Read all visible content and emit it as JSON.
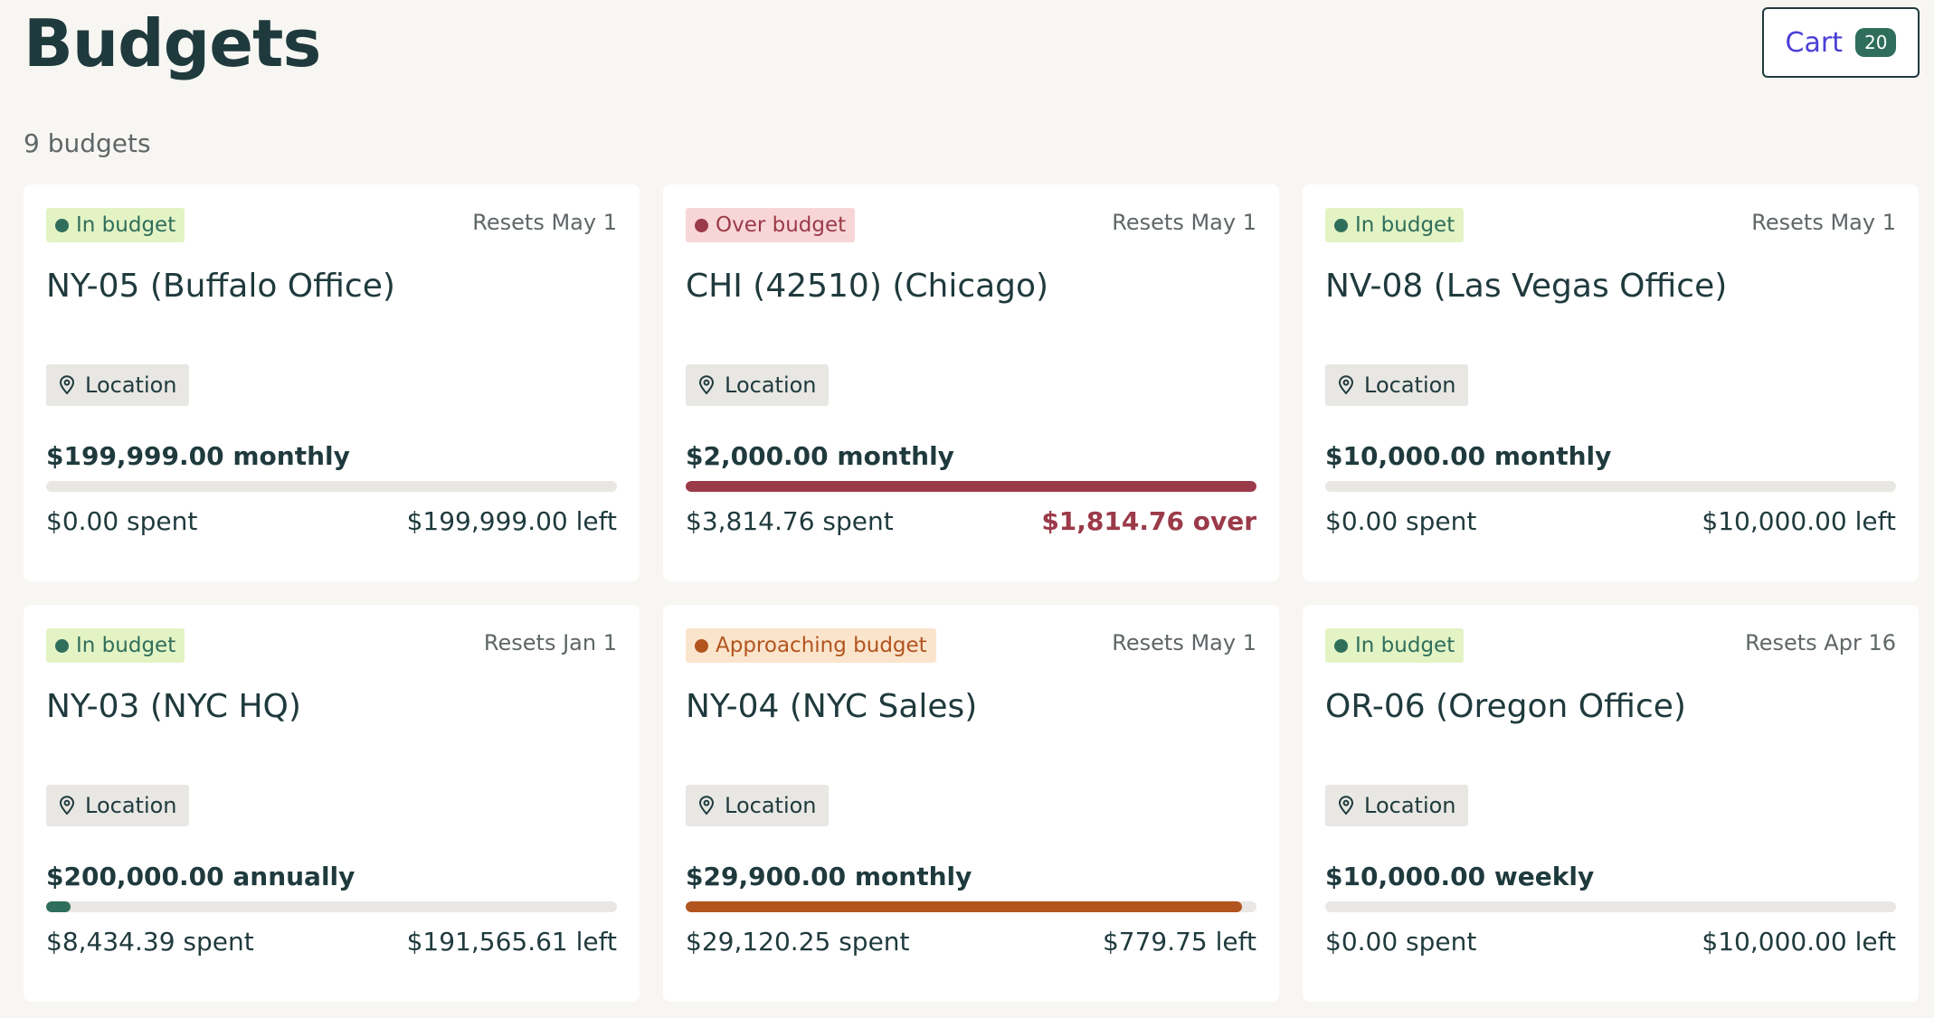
{
  "header": {
    "title": "Budgets",
    "cart_label": "Cart",
    "cart_count": "20"
  },
  "summary": {
    "count_text": "9 budgets"
  },
  "colors": {
    "in_budget": "#2f6e5b",
    "over_budget": "#9b3a49",
    "approaching_budget": "#b1541e",
    "cart_accent": "#4a3fd6"
  },
  "budgets": [
    {
      "status": "In budget",
      "status_type": "in",
      "reset": "Resets May 1",
      "name": "NY-05 (Buffalo Office)",
      "tag": "Location",
      "tag_icon": "location-pin-icon",
      "amount": "$199,999.00 monthly",
      "spent": "$0.00 spent",
      "remaining": "$199,999.00 left",
      "progress": 0
    },
    {
      "status": "Over budget",
      "status_type": "over",
      "reset": "Resets May 1",
      "name": "CHI (42510) (Chicago)",
      "tag": "Location",
      "tag_icon": "location-pin-icon",
      "amount": "$2,000.00 monthly",
      "spent": "$3,814.76 spent",
      "remaining": "$1,814.76 over",
      "progress": 1
    },
    {
      "status": "In budget",
      "status_type": "in",
      "reset": "Resets May 1",
      "name": "NV-08 (Las Vegas Office)",
      "tag": "Location",
      "tag_icon": "location-pin-icon",
      "amount": "$10,000.00 monthly",
      "spent": "$0.00 spent",
      "remaining": "$10,000.00 left",
      "progress": 0
    },
    {
      "status": "In budget",
      "status_type": "in",
      "reset": "Resets Jan 1",
      "name": "NY-03 (NYC HQ)",
      "tag": "Location",
      "tag_icon": "location-pin-icon",
      "amount": "$200,000.00 annually",
      "spent": "$8,434.39 spent",
      "remaining": "$191,565.61 left",
      "progress": 0.042
    },
    {
      "status": "Approaching budget",
      "status_type": "approach",
      "reset": "Resets May 1",
      "name": "NY-04 (NYC Sales)",
      "tag": "Location",
      "tag_icon": "location-pin-icon",
      "amount": "$29,900.00 monthly",
      "spent": "$29,120.25 spent",
      "remaining": "$779.75 left",
      "progress": 0.974
    },
    {
      "status": "In budget",
      "status_type": "in",
      "reset": "Resets Apr 16",
      "name": "OR-06 (Oregon Office)",
      "tag": "Location",
      "tag_icon": "location-pin-icon",
      "amount": "$10,000.00 weekly",
      "spent": "$0.00 spent",
      "remaining": "$10,000.00 left",
      "progress": 0
    }
  ]
}
